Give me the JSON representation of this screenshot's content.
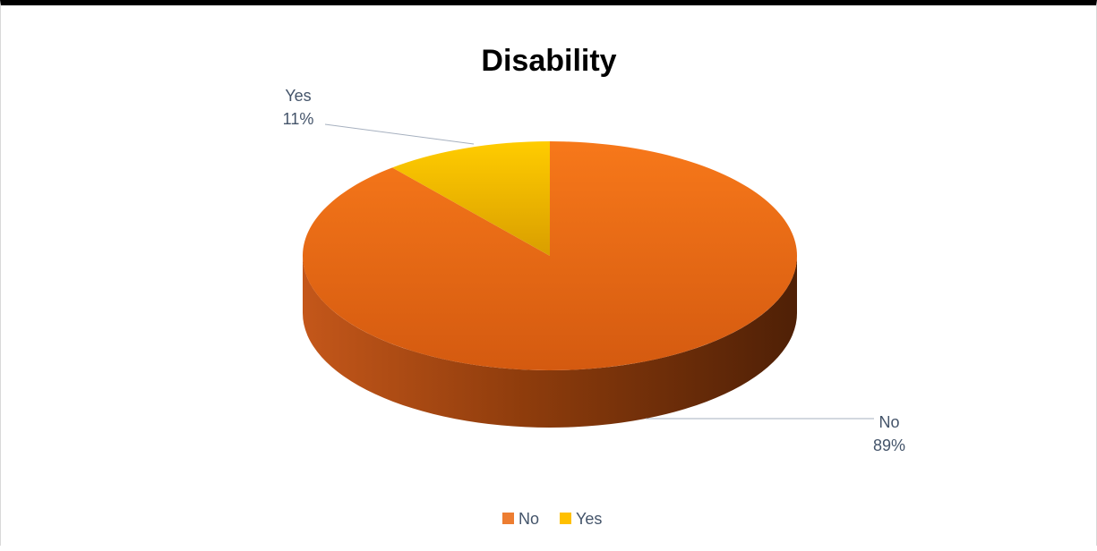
{
  "chart_data": {
    "type": "pie",
    "title": "Disability",
    "categories": [
      "No",
      "Yes"
    ],
    "values": [
      89,
      11
    ],
    "value_labels": [
      "89%",
      "11%"
    ],
    "colors": [
      "#ED7D31",
      "#FFC000"
    ],
    "legend_placement": "bottom",
    "style": "3d-pie"
  }
}
